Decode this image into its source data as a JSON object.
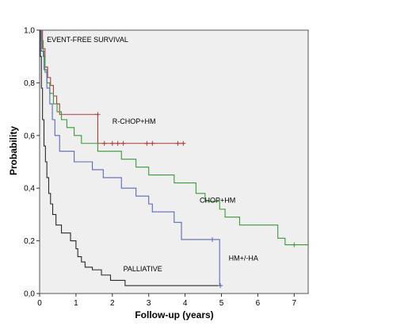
{
  "chart_data": {
    "type": "line",
    "subtype": "kaplan-meier",
    "title": "",
    "xlabel": "Follow-up (years)",
    "ylabel": "Probability",
    "xlim": [
      0,
      7.4
    ],
    "ylim": [
      0,
      1.0
    ],
    "x_ticks": [
      0,
      1,
      2,
      3,
      4,
      5,
      6,
      7
    ],
    "x_tick_labels": [
      "0",
      "1",
      "2",
      "3",
      "4",
      "5",
      "6",
      "7"
    ],
    "y_ticks": [
      0,
      0.2,
      0.4,
      0.6,
      0.8,
      1.0
    ],
    "y_tick_labels": [
      "0,0",
      "0,2",
      "0,4",
      "0,6",
      "0,8",
      "1,0"
    ],
    "grid": false,
    "plot_background": "#efefef",
    "annotations": [
      {
        "text": "EVENT-FREE SURVIVAL",
        "x": 0.2,
        "y": 0.955
      },
      {
        "text": "R-CHOP+HM",
        "x": 2.0,
        "y": 0.645
      },
      {
        "text": "CHOP+HM",
        "x": 4.4,
        "y": 0.345
      },
      {
        "text": "HM+/-HA",
        "x": 5.2,
        "y": 0.125
      },
      {
        "text": "PALLIATIVE",
        "x": 2.3,
        "y": 0.085
      }
    ],
    "series": [
      {
        "color": "#b03a3a",
        "steps": [
          [
            0,
            1.0
          ],
          [
            0.08,
            0.93
          ],
          [
            0.15,
            0.86
          ],
          [
            0.22,
            0.82
          ],
          [
            0.3,
            0.79
          ],
          [
            0.38,
            0.75
          ],
          [
            0.47,
            0.72
          ],
          [
            0.55,
            0.68
          ],
          [
            1.6,
            0.57
          ],
          [
            4.0,
            0.57
          ]
        ],
        "censored": [
          [
            1.6,
            0.68
          ],
          [
            1.78,
            0.57
          ],
          [
            2.0,
            0.57
          ],
          [
            2.15,
            0.57
          ],
          [
            2.3,
            0.57
          ],
          [
            2.95,
            0.57
          ],
          [
            3.1,
            0.57
          ],
          [
            3.8,
            0.57
          ],
          [
            3.95,
            0.57
          ]
        ]
      },
      {
        "color": "#3a9a3a",
        "steps": [
          [
            0,
            1.0
          ],
          [
            0.05,
            0.96
          ],
          [
            0.1,
            0.9
          ],
          [
            0.15,
            0.84
          ],
          [
            0.2,
            0.8
          ],
          [
            0.28,
            0.76
          ],
          [
            0.38,
            0.72
          ],
          [
            0.48,
            0.69
          ],
          [
            0.6,
            0.66
          ],
          [
            0.75,
            0.63
          ],
          [
            0.95,
            0.6
          ],
          [
            1.15,
            0.57
          ],
          [
            1.6,
            0.54
          ],
          [
            2.25,
            0.51
          ],
          [
            2.65,
            0.48
          ],
          [
            3.0,
            0.45
          ],
          [
            3.7,
            0.42
          ],
          [
            4.3,
            0.38
          ],
          [
            4.55,
            0.35
          ],
          [
            4.95,
            0.32
          ],
          [
            5.1,
            0.29
          ],
          [
            5.5,
            0.26
          ],
          [
            6.55,
            0.21
          ],
          [
            6.75,
            0.185
          ],
          [
            7.4,
            0.185
          ]
        ],
        "censored": [
          [
            7.0,
            0.185
          ]
        ]
      },
      {
        "color": "#5a6ab8",
        "steps": [
          [
            0,
            1.0
          ],
          [
            0.05,
            0.92
          ],
          [
            0.12,
            0.85
          ],
          [
            0.2,
            0.78
          ],
          [
            0.28,
            0.72
          ],
          [
            0.35,
            0.66
          ],
          [
            0.42,
            0.6
          ],
          [
            0.55,
            0.54
          ],
          [
            0.95,
            0.5
          ],
          [
            1.45,
            0.47
          ],
          [
            1.75,
            0.44
          ],
          [
            2.25,
            0.4
          ],
          [
            2.65,
            0.37
          ],
          [
            3.0,
            0.34
          ],
          [
            3.1,
            0.31
          ],
          [
            3.7,
            0.27
          ],
          [
            3.9,
            0.205
          ],
          [
            4.95,
            0.205
          ],
          [
            4.95,
            0.03
          ],
          [
            5.0,
            0.03
          ]
        ],
        "censored": [
          [
            4.75,
            0.205
          ],
          [
            4.97,
            0.03
          ]
        ]
      },
      {
        "color": "#2a2a2a",
        "steps": [
          [
            0,
            1.0
          ],
          [
            0.02,
            0.9
          ],
          [
            0.05,
            0.78
          ],
          [
            0.08,
            0.66
          ],
          [
            0.12,
            0.56
          ],
          [
            0.16,
            0.5
          ],
          [
            0.2,
            0.44
          ],
          [
            0.25,
            0.38
          ],
          [
            0.3,
            0.34
          ],
          [
            0.36,
            0.3
          ],
          [
            0.45,
            0.26
          ],
          [
            0.6,
            0.23
          ],
          [
            0.85,
            0.2
          ],
          [
            1.0,
            0.17
          ],
          [
            1.05,
            0.14
          ],
          [
            1.15,
            0.12
          ],
          [
            1.25,
            0.1
          ],
          [
            1.45,
            0.09
          ],
          [
            1.7,
            0.07
          ],
          [
            1.95,
            0.05
          ],
          [
            2.35,
            0.03
          ],
          [
            5.0,
            0.03
          ]
        ],
        "censored": []
      }
    ]
  }
}
